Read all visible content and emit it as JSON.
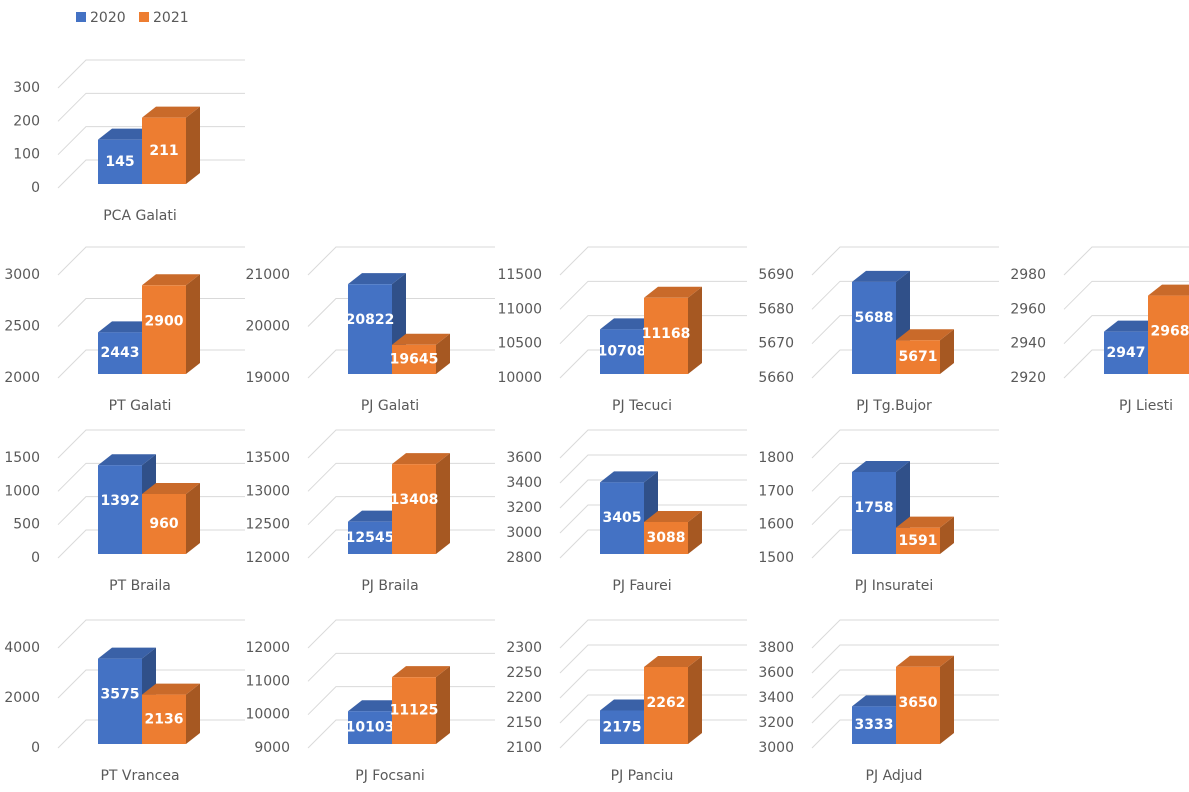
{
  "legend": {
    "series": [
      {
        "name": "2020",
        "color": "#4472c4"
      },
      {
        "name": "2021",
        "color": "#ed7d31"
      }
    ]
  },
  "chart_data": [
    {
      "type": "bar",
      "categories": [
        "PCA Galati"
      ],
      "series": [
        {
          "values": [
            145
          ]
        },
        {
          "values": [
            211
          ]
        }
      ],
      "ylim": [
        0,
        300
      ],
      "yticks": [
        0,
        100,
        200,
        300
      ]
    },
    {
      "type": "bar",
      "categories": [
        "PT Galati"
      ],
      "series": [
        {
          "values": [
            2443
          ]
        },
        {
          "values": [
            2900
          ]
        }
      ],
      "ylim": [
        2000,
        3000
      ],
      "yticks": [
        2000,
        2500,
        3000
      ]
    },
    {
      "type": "bar",
      "categories": [
        "PJ Galati"
      ],
      "series": [
        {
          "values": [
            20822
          ]
        },
        {
          "values": [
            19645
          ]
        }
      ],
      "ylim": [
        19000,
        21000
      ],
      "yticks": [
        19000,
        20000,
        21000
      ]
    },
    {
      "type": "bar",
      "categories": [
        "PJ Tecuci"
      ],
      "series": [
        {
          "values": [
            10708
          ]
        },
        {
          "values": [
            11168
          ]
        }
      ],
      "ylim": [
        10000,
        11500
      ],
      "yticks": [
        10000,
        10500,
        11000,
        11500
      ]
    },
    {
      "type": "bar",
      "categories": [
        "PJ Tg.Bujor"
      ],
      "series": [
        {
          "values": [
            5688
          ]
        },
        {
          "values": [
            5671
          ]
        }
      ],
      "ylim": [
        5660,
        5690
      ],
      "yticks": [
        5660,
        5670,
        5680,
        5690
      ]
    },
    {
      "type": "bar",
      "categories": [
        "PJ Liesti"
      ],
      "series": [
        {
          "values": [
            2947
          ]
        },
        {
          "values": [
            2968
          ]
        }
      ],
      "ylim": [
        2920,
        2980
      ],
      "yticks": [
        2920,
        2940,
        2960,
        2980
      ]
    },
    {
      "type": "bar",
      "categories": [
        "PT Braila"
      ],
      "series": [
        {
          "values": [
            1392
          ]
        },
        {
          "values": [
            960
          ]
        }
      ],
      "ylim": [
        0,
        1500
      ],
      "yticks": [
        0,
        500,
        1000,
        1500
      ]
    },
    {
      "type": "bar",
      "categories": [
        "PJ Braila"
      ],
      "series": [
        {
          "values": [
            12545
          ]
        },
        {
          "values": [
            13408
          ]
        }
      ],
      "ylim": [
        12000,
        13500
      ],
      "yticks": [
        12000,
        12500,
        13000,
        13500
      ]
    },
    {
      "type": "bar",
      "categories": [
        "PJ Faurei"
      ],
      "series": [
        {
          "values": [
            3405
          ]
        },
        {
          "values": [
            3088
          ]
        }
      ],
      "ylim": [
        2800,
        3600
      ],
      "yticks": [
        2800,
        3000,
        3200,
        3400,
        3600
      ]
    },
    {
      "type": "bar",
      "categories": [
        "PJ Insuratei"
      ],
      "series": [
        {
          "values": [
            1758
          ]
        },
        {
          "values": [
            1591
          ]
        }
      ],
      "ylim": [
        1500,
        1800
      ],
      "yticks": [
        1500,
        1600,
        1700,
        1800
      ]
    },
    {
      "type": "bar",
      "categories": [
        "PT Vrancea"
      ],
      "series": [
        {
          "values": [
            3575
          ]
        },
        {
          "values": [
            2136
          ]
        }
      ],
      "ylim": [
        0,
        4000
      ],
      "yticks": [
        0,
        2000,
        4000
      ]
    },
    {
      "type": "bar",
      "categories": [
        "PJ Focsani"
      ],
      "series": [
        {
          "values": [
            10103
          ]
        },
        {
          "values": [
            11125
          ]
        }
      ],
      "ylim": [
        9000,
        12000
      ],
      "yticks": [
        9000,
        10000,
        11000,
        12000
      ]
    },
    {
      "type": "bar",
      "categories": [
        "PJ Panciu"
      ],
      "series": [
        {
          "values": [
            2175
          ]
        },
        {
          "values": [
            2262
          ]
        }
      ],
      "ylim": [
        2100,
        2300
      ],
      "yticks": [
        2100,
        2150,
        2200,
        2250,
        2300
      ]
    },
    {
      "type": "bar",
      "categories": [
        "PJ Adjud"
      ],
      "series": [
        {
          "values": [
            3333
          ]
        },
        {
          "values": [
            3650
          ]
        }
      ],
      "ylim": [
        3000,
        3800
      ],
      "yticks": [
        3000,
        3200,
        3400,
        3600,
        3800
      ]
    }
  ]
}
